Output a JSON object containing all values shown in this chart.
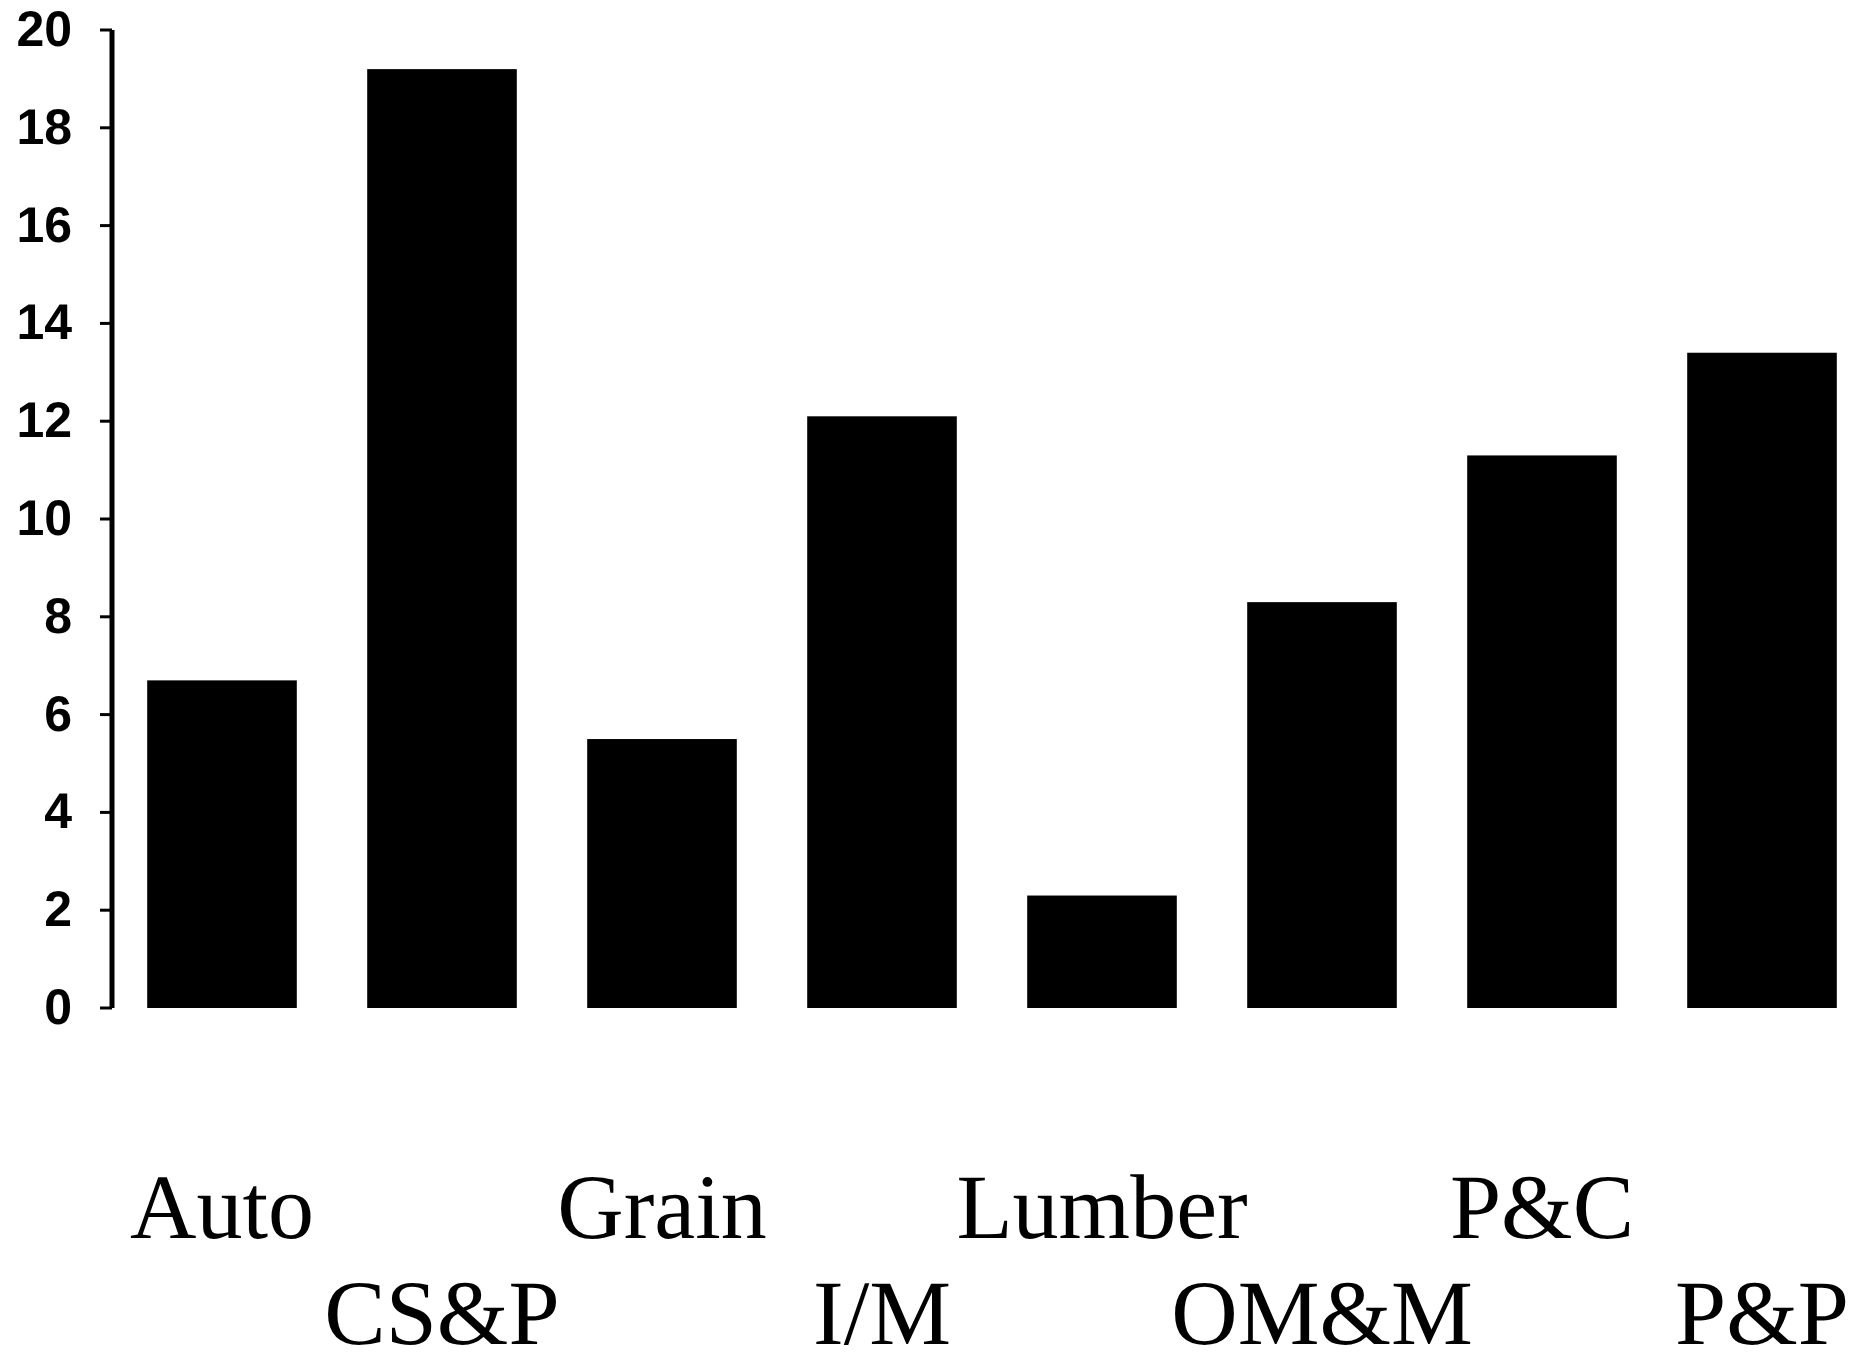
{
  "chart_data": {
    "type": "bar",
    "categories": [
      "Auto",
      "CS&P",
      "Grain",
      "I/M",
      "Lumber",
      "OM&M",
      "P&C",
      "P&P"
    ],
    "values": [
      6.7,
      19.2,
      5.5,
      12.1,
      2.3,
      8.3,
      11.3,
      13.4
    ],
    "color": "#000000",
    "ylim": [
      0,
      20
    ],
    "yticks": [
      0,
      2,
      4,
      6,
      8,
      10,
      12,
      14,
      16,
      18,
      20
    ]
  }
}
